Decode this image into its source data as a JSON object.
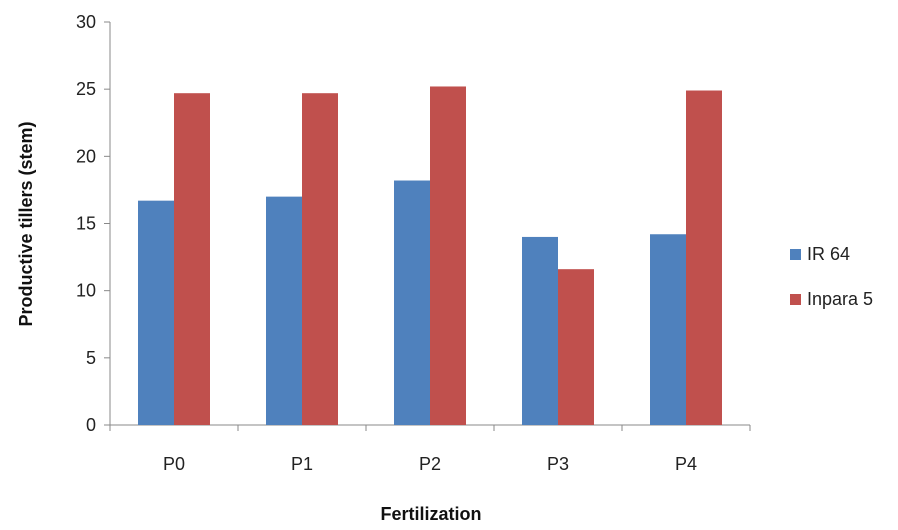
{
  "chart_data": {
    "type": "bar",
    "categories": [
      "P0",
      "P1",
      "P2",
      "P3",
      "P4"
    ],
    "series": [
      {
        "name": "IR 64",
        "values": [
          16.7,
          17.0,
          18.2,
          14.0,
          14.2
        ],
        "color": "#4f81bd"
      },
      {
        "name": "Inpara 5",
        "values": [
          24.7,
          24.7,
          25.2,
          11.6,
          24.9
        ],
        "color": "#c0504d"
      }
    ],
    "xlabel": "Fertilization",
    "ylabel": "Productive tillers (stem)",
    "ylim": [
      0,
      30
    ],
    "yticks": [
      "0",
      "5",
      "10",
      "15",
      "20",
      "25",
      "30"
    ],
    "grid": false,
    "legend": "right"
  }
}
